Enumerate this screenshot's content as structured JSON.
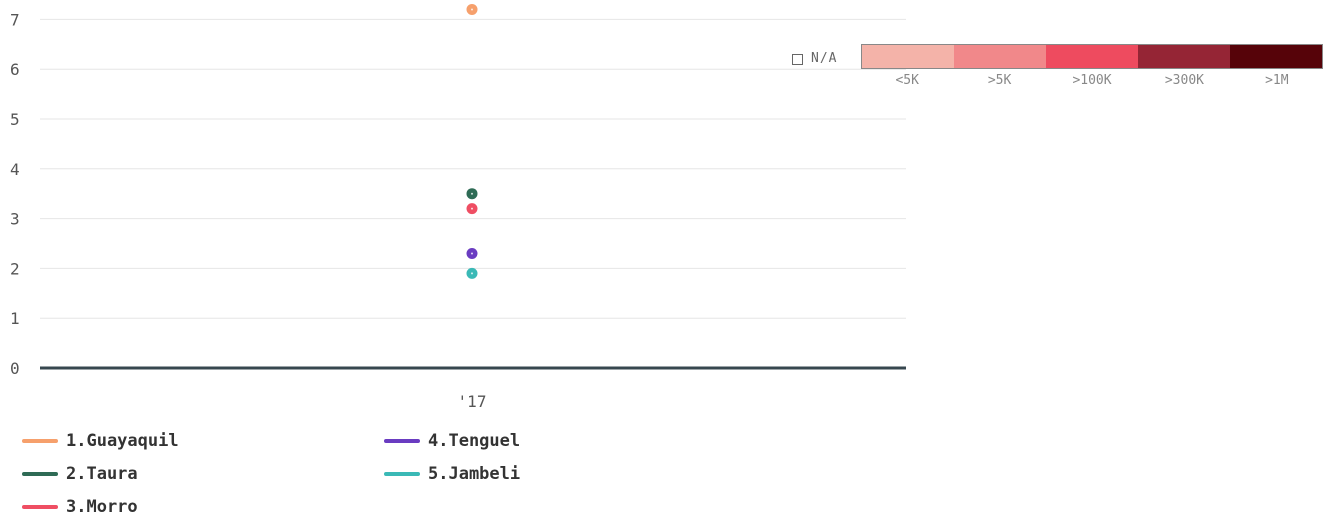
{
  "chart_data": {
    "type": "scatter",
    "categories": [
      "'17"
    ],
    "ylim": [
      0,
      7
    ],
    "yticks": [
      0,
      1,
      2,
      3,
      4,
      5,
      6,
      7
    ],
    "grid": true,
    "series": [
      {
        "name": "1.Guayaquil",
        "color": "#f6a06c",
        "values": [
          7.2
        ]
      },
      {
        "name": "2.Taura",
        "color": "#2e6b55",
        "values": [
          3.5
        ]
      },
      {
        "name": "3.Morro",
        "color": "#ef4e63",
        "values": [
          3.2
        ]
      },
      {
        "name": "4.Tenguel",
        "color": "#6a3cc1",
        "values": [
          2.3
        ]
      },
      {
        "name": "5.Jambeli",
        "color": "#3ab9b6",
        "values": [
          1.9
        ]
      }
    ],
    "legend_position": "bottom-left"
  },
  "color_scale": {
    "na_label": "N/A",
    "segments": [
      {
        "label": "<5K",
        "color": "#f4b3a9"
      },
      {
        "label": ">5K",
        "color": "#f1888a"
      },
      {
        "label": ">100K",
        "color": "#ee4b5f"
      },
      {
        "label": ">300K",
        "color": "#952535"
      },
      {
        "label": ">1M",
        "color": "#560309"
      }
    ]
  }
}
